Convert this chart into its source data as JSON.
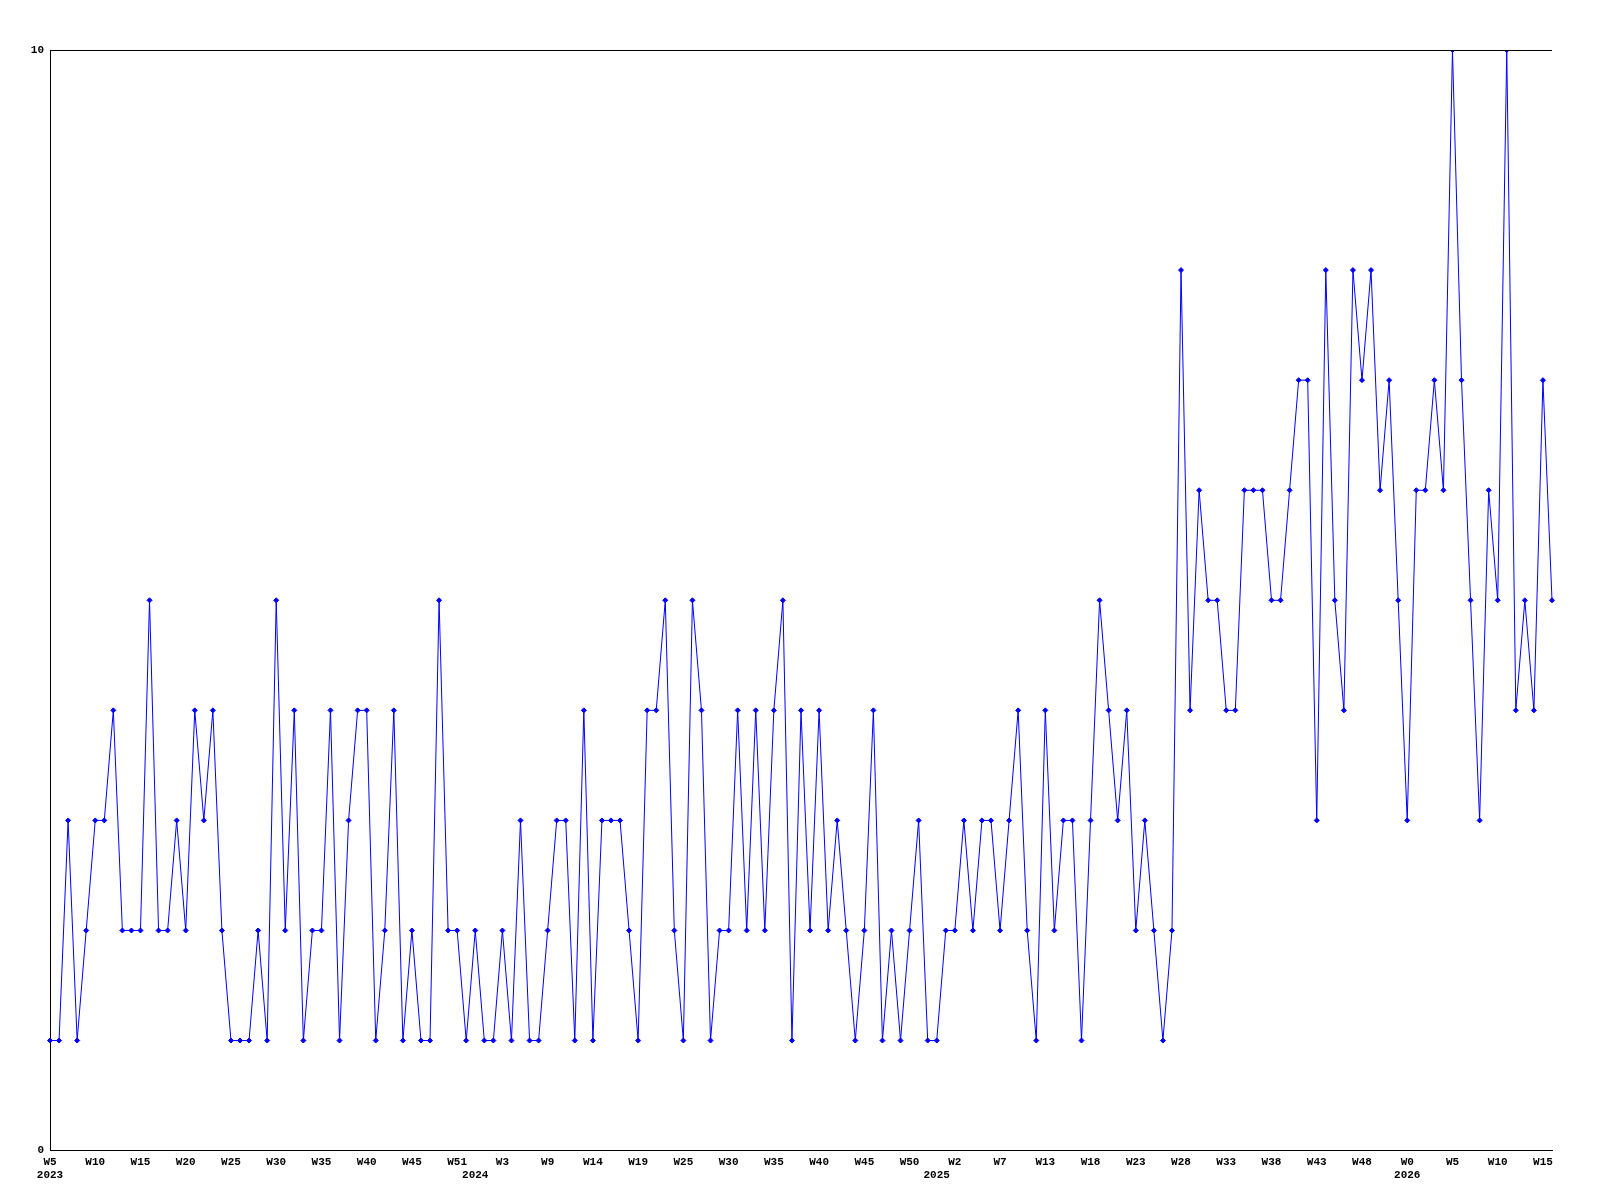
{
  "chart_data": {
    "type": "line",
    "categories": [
      "W5\n2023",
      null,
      null,
      null,
      null,
      "W10",
      null,
      null,
      null,
      null,
      "W15",
      null,
      null,
      null,
      null,
      "W20",
      null,
      null,
      null,
      null,
      "W25",
      null,
      null,
      null,
      null,
      "W30",
      null,
      null,
      null,
      null,
      "W35",
      null,
      null,
      null,
      null,
      "W40",
      null,
      null,
      null,
      null,
      "W45",
      null,
      null,
      null,
      null,
      "W51",
      null,
      "\n2024",
      null,
      null,
      "W3",
      null,
      null,
      null,
      null,
      "W9",
      null,
      null,
      null,
      null,
      "W14",
      null,
      null,
      null,
      null,
      "W19",
      null,
      null,
      null,
      null,
      "W25",
      null,
      null,
      null,
      null,
      "W30",
      null,
      null,
      null,
      null,
      "W35",
      null,
      null,
      null,
      null,
      "W40",
      null,
      null,
      null,
      null,
      "W45",
      null,
      null,
      null,
      null,
      "W50",
      null,
      null,
      "\n2025",
      null,
      "W2",
      null,
      null,
      null,
      null,
      "W7",
      null,
      null,
      null,
      null,
      "W13",
      null,
      null,
      null,
      null,
      "W18",
      null,
      null,
      null,
      null,
      "W23",
      null,
      null,
      null,
      null,
      "W28",
      null,
      null,
      null,
      null,
      "W33",
      null,
      null,
      null,
      null,
      "W38",
      null,
      null,
      null,
      null,
      "W43",
      null,
      null,
      null,
      null,
      "W48",
      null,
      null,
      null,
      null,
      "W0\n2026",
      null,
      null,
      null,
      null,
      "W5",
      null,
      null,
      null,
      null,
      "W10",
      null,
      null,
      null,
      null,
      "W15",
      null
    ],
    "series": [
      {
        "color": "#0000ff",
        "values": [
          1,
          1,
          3,
          1,
          2,
          3,
          3,
          4,
          2,
          2,
          2,
          5,
          2,
          2,
          3,
          2,
          4,
          3,
          4,
          2,
          1,
          1,
          1,
          2,
          1,
          5,
          2,
          4,
          1,
          2,
          2,
          4,
          1,
          3,
          4,
          4,
          1,
          2,
          4,
          1,
          2,
          1,
          1,
          5,
          2,
          2,
          1,
          2,
          1,
          1,
          2,
          1,
          3,
          1,
          1,
          2,
          3,
          3,
          1,
          4,
          1,
          3,
          3,
          3,
          2,
          1,
          4,
          4,
          5,
          2,
          1,
          5,
          4,
          1,
          2,
          2,
          4,
          2,
          4,
          2,
          4,
          5,
          1,
          4,
          2,
          4,
          2,
          3,
          2,
          1,
          2,
          4,
          1,
          2,
          1,
          2,
          3,
          1,
          1,
          2,
          2,
          3,
          2,
          3,
          3,
          2,
          3,
          4,
          2,
          1,
          4,
          2,
          3,
          3,
          1,
          3,
          5,
          4,
          3,
          4,
          2,
          3,
          2,
          1,
          2,
          8,
          4,
          6,
          5,
          5,
          4,
          4,
          6,
          6,
          6,
          5,
          5,
          6,
          7,
          7,
          3,
          8,
          5,
          4,
          8,
          7,
          8,
          6,
          7,
          5,
          3,
          6,
          6,
          7,
          6,
          10,
          7,
          5,
          3,
          6,
          5,
          10,
          4,
          5,
          4,
          7,
          5
        ]
      }
    ],
    "ylim": [
      0,
      10
    ],
    "yticks": [
      0,
      10
    ],
    "grid": false,
    "legend": false,
    "marker": "diamond",
    "line_style": "solid"
  }
}
